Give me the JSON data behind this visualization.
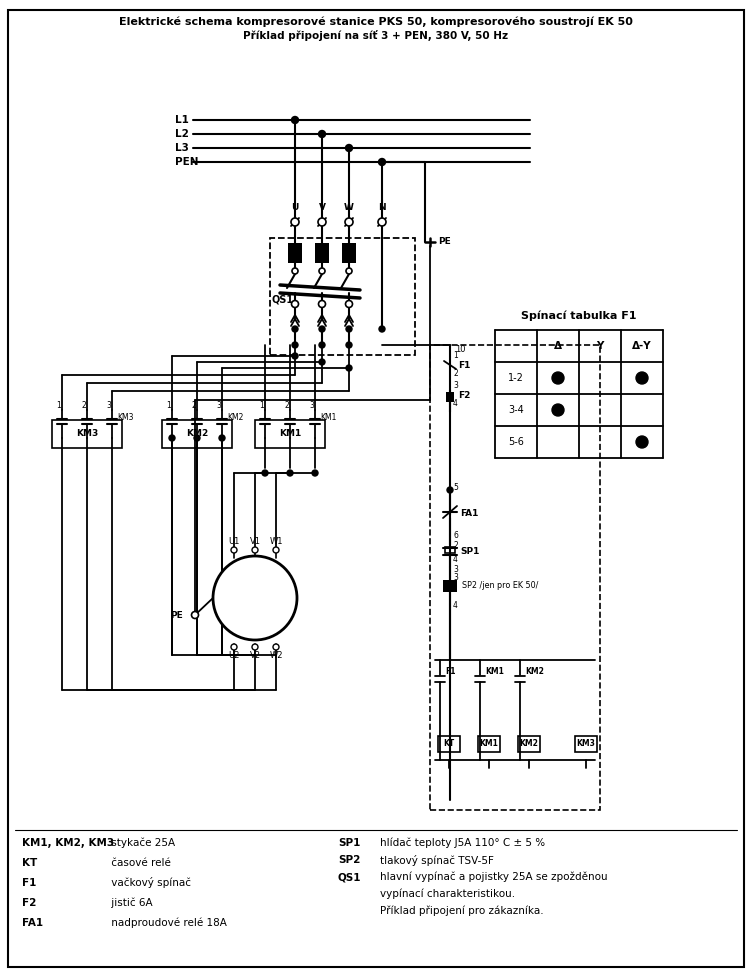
{
  "title_line1": "Elektrické schema kompresorové stanice PKS 50, kompresorového soustrojí EK 50",
  "title_line2": "Příklad připojení na síť 3 + PEN, 380 V, 50 Hz",
  "legend_left": [
    [
      "KM1, KM2, KM3",
      " stykače 25A"
    ],
    [
      "KT",
      " časové relé"
    ],
    [
      "F1",
      " vačkový spínač"
    ],
    [
      "F2",
      " jistič 6A"
    ],
    [
      "FA1",
      " nadproudové relé 18A"
    ]
  ],
  "legend_right": [
    [
      "SP1",
      "hlídač teploty J5A 110° C ± 5 %"
    ],
    [
      "SP2",
      "tlakový spínač TSV-5F"
    ],
    [
      "QS1",
      "hlavní vypínač a pojistky 25A se zpožděnou"
    ],
    [
      "",
      "vypínací charakteristikou."
    ],
    [
      "",
      "Příklad připojení pro zákazníka."
    ]
  ],
  "bg_color": "#ffffff",
  "ink_color": "#000000",
  "table_dots": [
    [
      1,
      1
    ],
    [
      1,
      3
    ],
    [
      2,
      1
    ],
    [
      3,
      3
    ]
  ],
  "table_rows": [
    "1-2",
    "3-4",
    "5-6"
  ],
  "table_cols": [
    "Δ",
    "Υ",
    "Δ-Υ"
  ]
}
